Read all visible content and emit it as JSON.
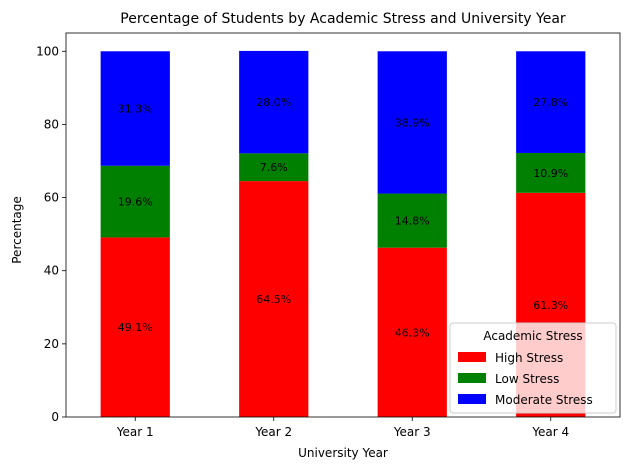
{
  "chart_data": {
    "type": "bar",
    "stacked": true,
    "title": "Percentage of Students by Academic Stress and University Year",
    "xlabel": "University Year",
    "ylabel": "Percentage",
    "categories": [
      "Year 1",
      "Year 2",
      "Year 3",
      "Year 4"
    ],
    "ylim": [
      0,
      105
    ],
    "yticks": [
      0,
      20,
      40,
      60,
      80,
      100
    ],
    "grid": false,
    "legend": {
      "title": "Academic Stress",
      "placement": "lower-right"
    },
    "series": [
      {
        "name": "High Stress",
        "color": "#ff0000",
        "values": [
          49.1,
          64.5,
          46.3,
          61.3
        ],
        "labels": [
          "49.1%",
          "64.5%",
          "46.3%",
          "61.3%"
        ]
      },
      {
        "name": "Low Stress",
        "color": "#008000",
        "values": [
          19.6,
          7.6,
          14.8,
          10.9
        ],
        "labels": [
          "19.6%",
          "7.6%",
          "14.8%",
          "10.9%"
        ]
      },
      {
        "name": "Moderate Stress",
        "color": "#0000ff",
        "values": [
          31.3,
          28.0,
          38.9,
          27.8
        ],
        "labels": [
          "31.3%",
          "28.0%",
          "38.9%",
          "27.8%"
        ]
      }
    ]
  }
}
